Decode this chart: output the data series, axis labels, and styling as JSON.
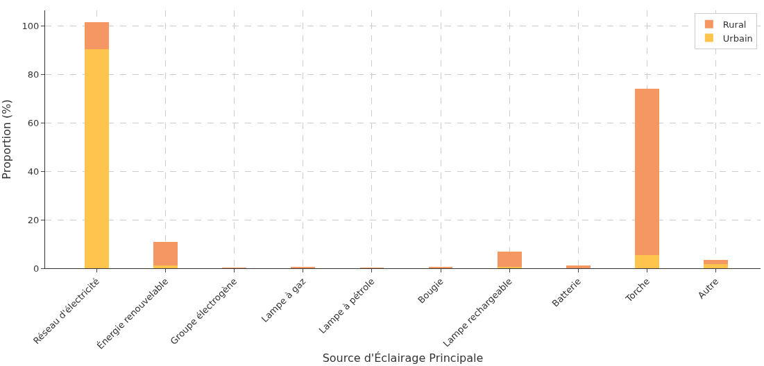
{
  "chart_data": {
    "type": "bar",
    "stacked": true,
    "xlabel": "Source d'Éclairage Principale",
    "ylabel": "Proportion (%)",
    "categories": [
      "Réseau d'électricité",
      "Énergie renouvelable",
      "Groupe électrogène",
      "Lampe à gaz",
      "Lampe à pétrole",
      "Bougie",
      "Lampe rechargeable",
      "Batterie",
      "Torche",
      "Autre"
    ],
    "series": [
      {
        "name": "Urbain",
        "color": "#ffc44d",
        "values": [
          90.5,
          1.2,
          0,
          0,
          0,
          0,
          0.5,
          0,
          5.4,
          1.8
        ]
      },
      {
        "name": "Rural",
        "color": "#f59762",
        "values": [
          11,
          9.7,
          0.2,
          0.5,
          0.2,
          0.5,
          6.5,
          1.1,
          68.8,
          1.5
        ]
      }
    ],
    "ylim": [
      0,
      106.5
    ],
    "yticks": [
      0,
      20,
      40,
      60,
      80,
      100
    ],
    "grid": true,
    "legend": "top right"
  }
}
